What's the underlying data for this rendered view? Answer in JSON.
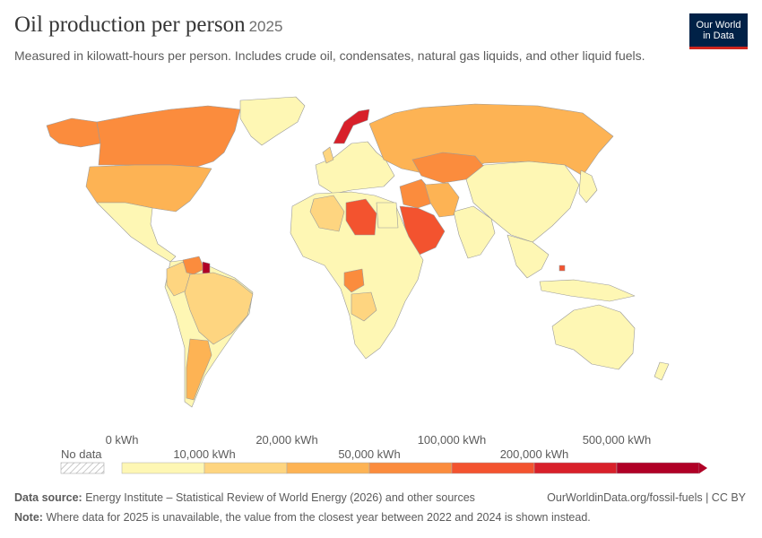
{
  "header": {
    "title": "Oil production per person",
    "year": "2025",
    "subtitle": "Measured in kilowatt-hours per person. Includes crude oil, condensates, natural gas liquids, and other liquid fuels."
  },
  "logo": {
    "line1": "Our World",
    "line2": "in Data",
    "bg": "#002147",
    "accent": "#ce261e"
  },
  "legend": {
    "no_data_label": "No data",
    "bins": [
      {
        "label": "0 kWh",
        "color": "#fef7b4"
      },
      {
        "label": "10,000 kWh",
        "color": "#fed580"
      },
      {
        "label": "20,000 kWh",
        "color": "#fdb354"
      },
      {
        "label": "50,000 kWh",
        "color": "#fb8c3d"
      },
      {
        "label": "100,000 kWh",
        "color": "#f3532f"
      },
      {
        "label": "200,000 kWh",
        "color": "#d8202a"
      },
      {
        "label": "500,000 kWh",
        "color": "#b00026"
      }
    ]
  },
  "footer": {
    "source_label": "Data source:",
    "source_text": "Energy Institute – Statistical Review of World Energy (2026) and other sources",
    "attribution": "OurWorldinData.org/fossil-fuels | CC BY",
    "note_label": "Note:",
    "note_text": "Where data for 2025 is unavailable, the value from the closest year between 2022 and 2024 is shown instead."
  },
  "map": {
    "regions": [
      {
        "id": "canada",
        "color": "#fb8c3d"
      },
      {
        "id": "usa",
        "color": "#fdb354"
      },
      {
        "id": "mexico",
        "color": "#fef7b4"
      },
      {
        "id": "alaska",
        "color": "#fb8c3d"
      },
      {
        "id": "greenland",
        "color": "#fef7b4"
      },
      {
        "id": "south-america",
        "color": "#fef7b4"
      },
      {
        "id": "brazil",
        "color": "#fed580"
      },
      {
        "id": "venezuela",
        "color": "#fb8c3d"
      },
      {
        "id": "guyana",
        "color": "#b00026"
      },
      {
        "id": "argentina",
        "color": "#fdb354"
      },
      {
        "id": "colombia-ecuador",
        "color": "#fed580"
      },
      {
        "id": "europe",
        "color": "#fef7b4"
      },
      {
        "id": "norway",
        "color": "#d8202a"
      },
      {
        "id": "uk",
        "color": "#fed580"
      },
      {
        "id": "russia",
        "color": "#fdb354"
      },
      {
        "id": "kazakhstan",
        "color": "#fb8c3d"
      },
      {
        "id": "africa",
        "color": "#fef7b4"
      },
      {
        "id": "libya",
        "color": "#f3532f"
      },
      {
        "id": "algeria",
        "color": "#fed580"
      },
      {
        "id": "egypt",
        "color": "#fef7b4"
      },
      {
        "id": "gabon-congo",
        "color": "#fb8c3d"
      },
      {
        "id": "angola",
        "color": "#fed580"
      },
      {
        "id": "middle-east",
        "color": "#fb8c3d"
      },
      {
        "id": "saudi-arabia",
        "color": "#f3532f"
      },
      {
        "id": "iran",
        "color": "#fdb354"
      },
      {
        "id": "china-asia",
        "color": "#fef7b4"
      },
      {
        "id": "india",
        "color": "#fef7b4"
      },
      {
        "id": "southeast-asia",
        "color": "#fef7b4"
      },
      {
        "id": "brunei",
        "color": "#f3532f"
      },
      {
        "id": "australia",
        "color": "#fef7b4"
      },
      {
        "id": "new-zealand",
        "color": "#fef7b4"
      },
      {
        "id": "japan",
        "color": "#fef7b4"
      }
    ]
  }
}
